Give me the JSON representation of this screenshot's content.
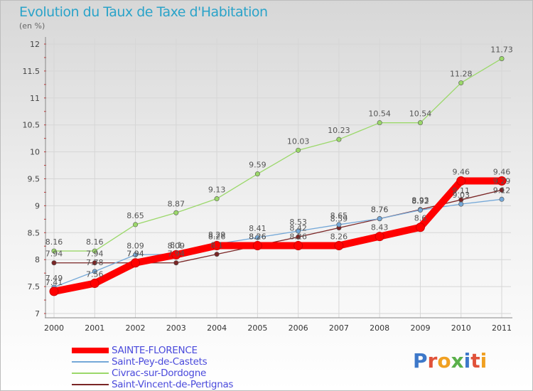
{
  "title": "Evolution du Taux de Taxe d'Habitation",
  "subtitle": "(en %)",
  "brand": {
    "letters": [
      "P",
      "r",
      "o",
      "x",
      "i",
      "t",
      "i"
    ],
    "colors": [
      "#3d78c9",
      "#e0523a",
      "#f0a022",
      "#5ab04a",
      "#3d78c9",
      "#e0523a",
      "#f0a022"
    ]
  },
  "chart_data": {
    "type": "line",
    "x": [
      "2000",
      "2001",
      "2002",
      "2003",
      "2004",
      "2005",
      "2006",
      "2007",
      "2008",
      "2009",
      "2010",
      "2011"
    ],
    "ylim": [
      7,
      12
    ],
    "yticks": [
      "7",
      "7.5",
      "8",
      "8.5",
      "9",
      "9.5",
      "10",
      "10.5",
      "11",
      "11.5",
      "12"
    ],
    "grid": true,
    "legend_position": "bottom-left",
    "series": [
      {
        "name": "SAINTE-FLORENCE",
        "color": "#ff0000",
        "values": [
          7.41,
          7.56,
          7.94,
          8.09,
          8.26,
          8.26,
          8.26,
          8.26,
          8.43,
          8.6,
          9.46,
          9.46
        ],
        "labels": [
          "7.41",
          "7.56",
          "7.94",
          "8.09",
          "8.26",
          "8.26",
          "8.26",
          "8.26",
          "8.43",
          "8.6",
          "9.46",
          "9.46"
        ]
      },
      {
        "name": "Saint-Pey-de-Castets",
        "color": "#74a8d8",
        "values": [
          7.49,
          7.78,
          8.09,
          8.1,
          8.29,
          8.41,
          8.53,
          8.65,
          8.76,
          8.92,
          9.03,
          9.12
        ],
        "labels": [
          "7.49",
          "7.78",
          "8.09",
          "8.1",
          "8.29",
          "8.41",
          "8.53",
          "8.65",
          "8.76",
          "8.92",
          "9.03",
          "9.12"
        ]
      },
      {
        "name": "Civrac-sur-Dordogne",
        "color": "#9bd86a",
        "values": [
          8.16,
          8.16,
          8.65,
          8.87,
          9.13,
          9.59,
          10.03,
          10.23,
          10.54,
          10.54,
          11.28,
          11.73
        ],
        "labels": [
          "8.16",
          "8.16",
          "8.65",
          "8.87",
          "9.13",
          "9.59",
          "10.03",
          "10.23",
          "10.54",
          "10.54",
          "11.28",
          "11.73"
        ]
      },
      {
        "name": "Saint-Vincent-de-Pertignas",
        "color": "#7a2525",
        "values": [
          7.94,
          7.94,
          7.94,
          7.94,
          8.1,
          8.26,
          8.42,
          8.59,
          8.76,
          8.93,
          9.11,
          9.29
        ],
        "labels": [
          "7.94",
          "7.94",
          "7.94",
          "7.94",
          "8.1",
          "8.26",
          "8.42",
          "8.59",
          "8.76",
          "8.93",
          "9.11",
          "9.29"
        ]
      }
    ]
  }
}
